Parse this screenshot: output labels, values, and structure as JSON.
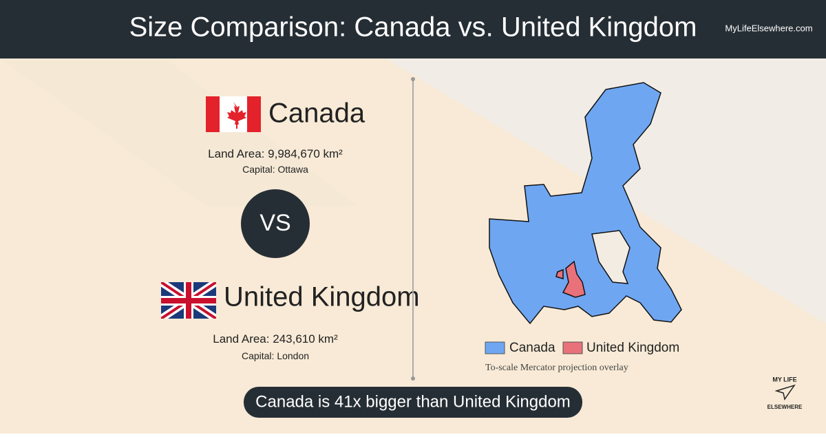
{
  "header": {
    "title": "Size Comparison: Canada vs. United Kingdom",
    "site": "MyLifeElsewhere.com"
  },
  "countries": [
    {
      "name": "Canada",
      "land_area_label": "Land Area:",
      "land_area": "9,984,670 km²",
      "capital_label": "Capital:",
      "capital": "Ottawa"
    },
    {
      "name": "United Kingdom",
      "land_area_label": "Land Area:",
      "land_area": "243,610 km²",
      "capital_label": "Capital:",
      "capital": "London"
    }
  ],
  "vs": "VS",
  "legend": [
    "Canada",
    "United Kingdom"
  ],
  "caption": "To-scale Mercator projection overlay",
  "summary": "Canada is 41x bigger than United Kingdom",
  "logo": [
    "MY LIFE",
    "ELSEWHERE"
  ]
}
